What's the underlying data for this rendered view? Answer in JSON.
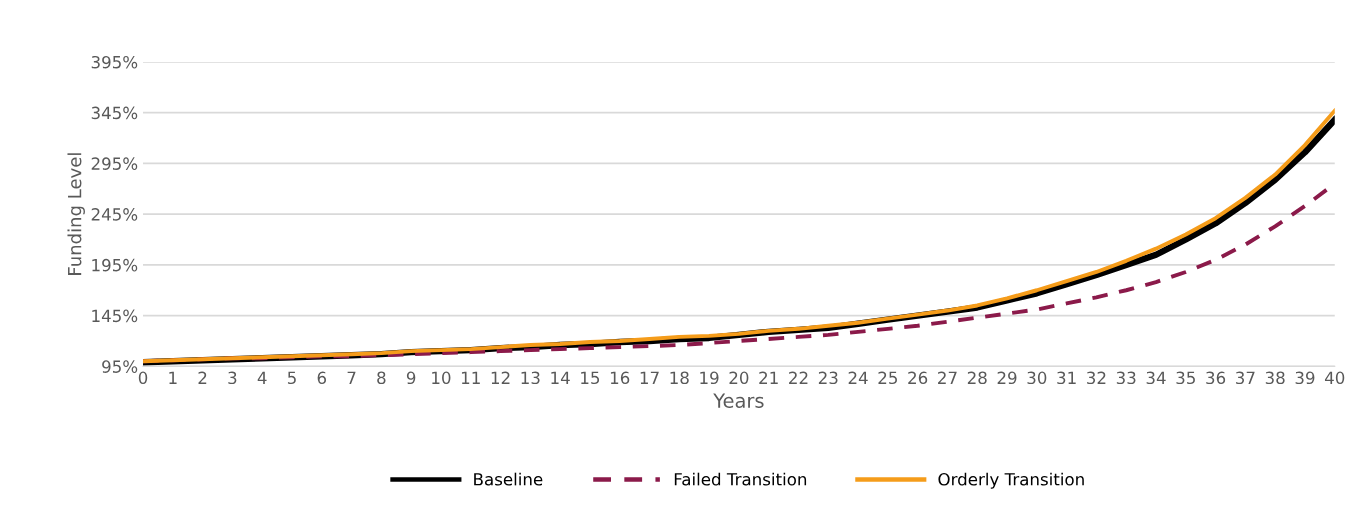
{
  "chart_data": {
    "type": "line",
    "xlabel": "Years",
    "ylabel": "Funding Level",
    "x": [
      0,
      1,
      2,
      3,
      4,
      5,
      6,
      7,
      8,
      9,
      10,
      11,
      12,
      13,
      14,
      15,
      16,
      17,
      18,
      19,
      20,
      21,
      22,
      23,
      24,
      25,
      26,
      27,
      28,
      29,
      30,
      31,
      32,
      33,
      34,
      35,
      36,
      37,
      38,
      39,
      40
    ],
    "series": [
      {
        "name": "Baseline",
        "color": "#000000",
        "line_style": "solid",
        "values": [
          99,
          100,
          101,
          102,
          103,
          104,
          105,
          106,
          107,
          109,
          110,
          111,
          113,
          114,
          116,
          117,
          119,
          120,
          122,
          123,
          126,
          129,
          131,
          133,
          137,
          141,
          145,
          149,
          153,
          160,
          167,
          176,
          185,
          195,
          205,
          220,
          236,
          256,
          279,
          306,
          338
        ]
      },
      {
        "name": "Failed Transition",
        "color": "#8b1a4a",
        "line_style": "dashed",
        "values": [
          100,
          101,
          102,
          103,
          103,
          104,
          105,
          105,
          106,
          107,
          108,
          109,
          110,
          111,
          112,
          113,
          114,
          115,
          116,
          118,
          120,
          122,
          124,
          126,
          129,
          132,
          135,
          139,
          143,
          147,
          151,
          157,
          163,
          170,
          178,
          188,
          200,
          215,
          233,
          253,
          275
        ]
      },
      {
        "name": "Orderly Transition",
        "color": "#f59c1a",
        "line_style": "solid",
        "values": [
          100,
          101,
          102,
          103,
          104,
          105,
          106,
          107,
          108,
          110,
          111,
          112,
          114,
          116,
          117,
          119,
          120,
          122,
          124,
          125,
          127,
          130,
          132,
          135,
          138,
          142,
          146,
          150,
          155,
          162,
          170,
          179,
          188,
          199,
          211,
          225,
          241,
          261,
          284,
          313,
          347
        ]
      }
    ],
    "xlim": [
      0,
      40
    ],
    "xticks": [
      0,
      1,
      2,
      3,
      4,
      5,
      6,
      7,
      8,
      9,
      10,
      11,
      12,
      13,
      14,
      15,
      16,
      17,
      18,
      19,
      20,
      21,
      22,
      23,
      24,
      25,
      26,
      27,
      28,
      29,
      30,
      31,
      32,
      33,
      34,
      35,
      36,
      37,
      38,
      39,
      40
    ],
    "ylim": [
      95,
      395
    ],
    "yticks": [
      {
        "value": 95,
        "label": "95%"
      },
      {
        "value": 145,
        "label": "145%"
      },
      {
        "value": 195,
        "label": "195%"
      },
      {
        "value": 245,
        "label": "245%"
      },
      {
        "value": 295,
        "label": "295%"
      },
      {
        "value": 345,
        "label": "345%"
      },
      {
        "value": 395,
        "label": "395%"
      }
    ],
    "grid": "y",
    "legend": "bottom",
    "marker": "none"
  }
}
